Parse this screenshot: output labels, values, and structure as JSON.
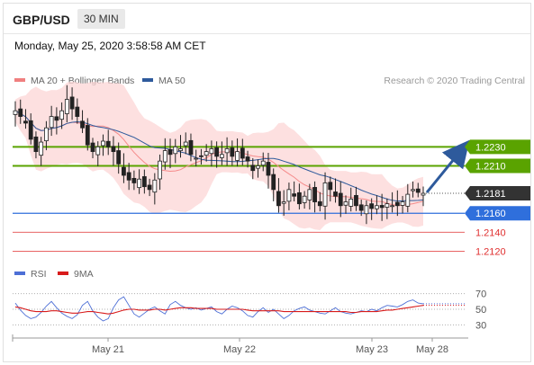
{
  "header": {
    "pair": "GBP/USD",
    "timeframe": "30 MIN"
  },
  "timestamp": "Monday, May 25, 2020 3:58:58 AM CET",
  "credit": "Research © 2020 Trading Central",
  "colors": {
    "resistance": "#5aa300",
    "support": "#2f6fdc",
    "target": "#e03030",
    "current": "#333333",
    "ma50": "#2e5a9c",
    "bollinger": "#f58a8a",
    "rsi": "#4d6fd6",
    "rsi_ma": "#d81b1b"
  },
  "chart_data": [
    {
      "type": "candlestick",
      "title": "",
      "legend": [
        {
          "name": "MA 20 + Bollinger Bands",
          "color": "#f08080"
        },
        {
          "name": "MA 50",
          "color": "#2e5a9c"
        }
      ],
      "x_labels": [
        "May 21",
        "May 22",
        "May 23",
        "May 28"
      ],
      "levels": [
        {
          "value": 1.223,
          "label": "1.2230",
          "kind": "resistance"
        },
        {
          "value": 1.221,
          "label": "1.2210",
          "kind": "resistance"
        },
        {
          "value": 1.2181,
          "label": "1.2181",
          "kind": "current"
        },
        {
          "value": 1.216,
          "label": "1.2160",
          "kind": "support"
        },
        {
          "value": 1.214,
          "label": "1.2140",
          "kind": "target"
        },
        {
          "value": 1.212,
          "label": "1.2120",
          "kind": "target"
        }
      ],
      "ylim": [
        1.211,
        1.229
      ],
      "close_path": [
        1.2268,
        1.2262,
        1.2255,
        1.2238,
        1.2225,
        1.2235,
        1.225,
        1.2262,
        1.2258,
        1.2268,
        1.228,
        1.227,
        1.2262,
        1.225,
        1.2232,
        1.2225,
        1.223,
        1.2236,
        1.223,
        1.2225,
        1.2212,
        1.22,
        1.2195,
        1.2192,
        1.2196,
        1.2188,
        1.2185,
        1.2195,
        1.2215,
        1.2226,
        1.2222,
        1.223,
        1.2228,
        1.2235,
        1.2222,
        1.2218,
        1.222,
        1.2225,
        1.2228,
        1.222,
        1.2222,
        1.2228,
        1.222,
        1.2225,
        1.2218,
        1.2215,
        1.2205,
        1.221,
        1.2215,
        1.22,
        1.2185,
        1.2168,
        1.2172,
        1.2185,
        1.2178,
        1.217,
        1.2178,
        1.2185,
        1.2172,
        1.2168,
        1.2192,
        1.2185,
        1.2178,
        1.2168,
        1.2172,
        1.2175,
        1.2168,
        1.2163,
        1.2168,
        1.2165,
        1.2168,
        1.2166,
        1.217,
        1.2168,
        1.2168,
        1.2172,
        1.218,
        1.2185,
        1.2182,
        1.2181
      ],
      "forecast_arrow": {
        "from": 1.2181,
        "to": 1.223
      }
    },
    {
      "type": "line",
      "title": "",
      "legend": [
        {
          "name": "RSI",
          "color": "#4d6fd6"
        },
        {
          "name": "9MA",
          "color": "#d81b1b"
        }
      ],
      "ylim": [
        20,
        80
      ],
      "y_ticks": [
        {
          "value": 70,
          "label": "70"
        },
        {
          "value": 50,
          "label": "50"
        },
        {
          "value": 30,
          "label": "30"
        }
      ],
      "series": [
        {
          "name": "RSI",
          "values": [
            58,
            49,
            42,
            38,
            40,
            46,
            54,
            60,
            52,
            45,
            41,
            38,
            43,
            55,
            60,
            48,
            40,
            35,
            38,
            52,
            62,
            66,
            55,
            44,
            40,
            45,
            50,
            53,
            48,
            44,
            56,
            60,
            55,
            52,
            50,
            52,
            49,
            51,
            53,
            47,
            44,
            50,
            54,
            52,
            48,
            42,
            40,
            47,
            52,
            46,
            50,
            44,
            38,
            42,
            48,
            51,
            53,
            49,
            47,
            45,
            44,
            48,
            52,
            47,
            45,
            44,
            46,
            48,
            47,
            50,
            48,
            52,
            55,
            54,
            53,
            56,
            60,
            62,
            58,
            57
          ]
        },
        {
          "name": "9MA",
          "values": [
            53,
            52,
            50,
            48,
            47,
            47,
            47,
            48,
            48,
            47,
            46,
            45,
            45,
            46,
            47,
            47,
            46,
            45,
            44,
            45,
            47,
            49,
            50,
            50,
            49,
            49,
            49,
            50,
            50,
            49,
            50,
            51,
            52,
            52,
            52,
            51,
            51,
            51,
            51,
            50,
            50,
            50,
            50,
            50,
            50,
            49,
            48,
            48,
            48,
            48,
            48,
            48,
            47,
            47,
            47,
            47,
            47,
            47,
            47,
            47,
            47,
            47,
            47,
            47,
            47,
            46,
            46,
            47,
            47,
            47,
            47,
            48,
            49,
            49,
            50,
            51,
            52,
            53,
            54,
            55
          ]
        }
      ]
    }
  ]
}
